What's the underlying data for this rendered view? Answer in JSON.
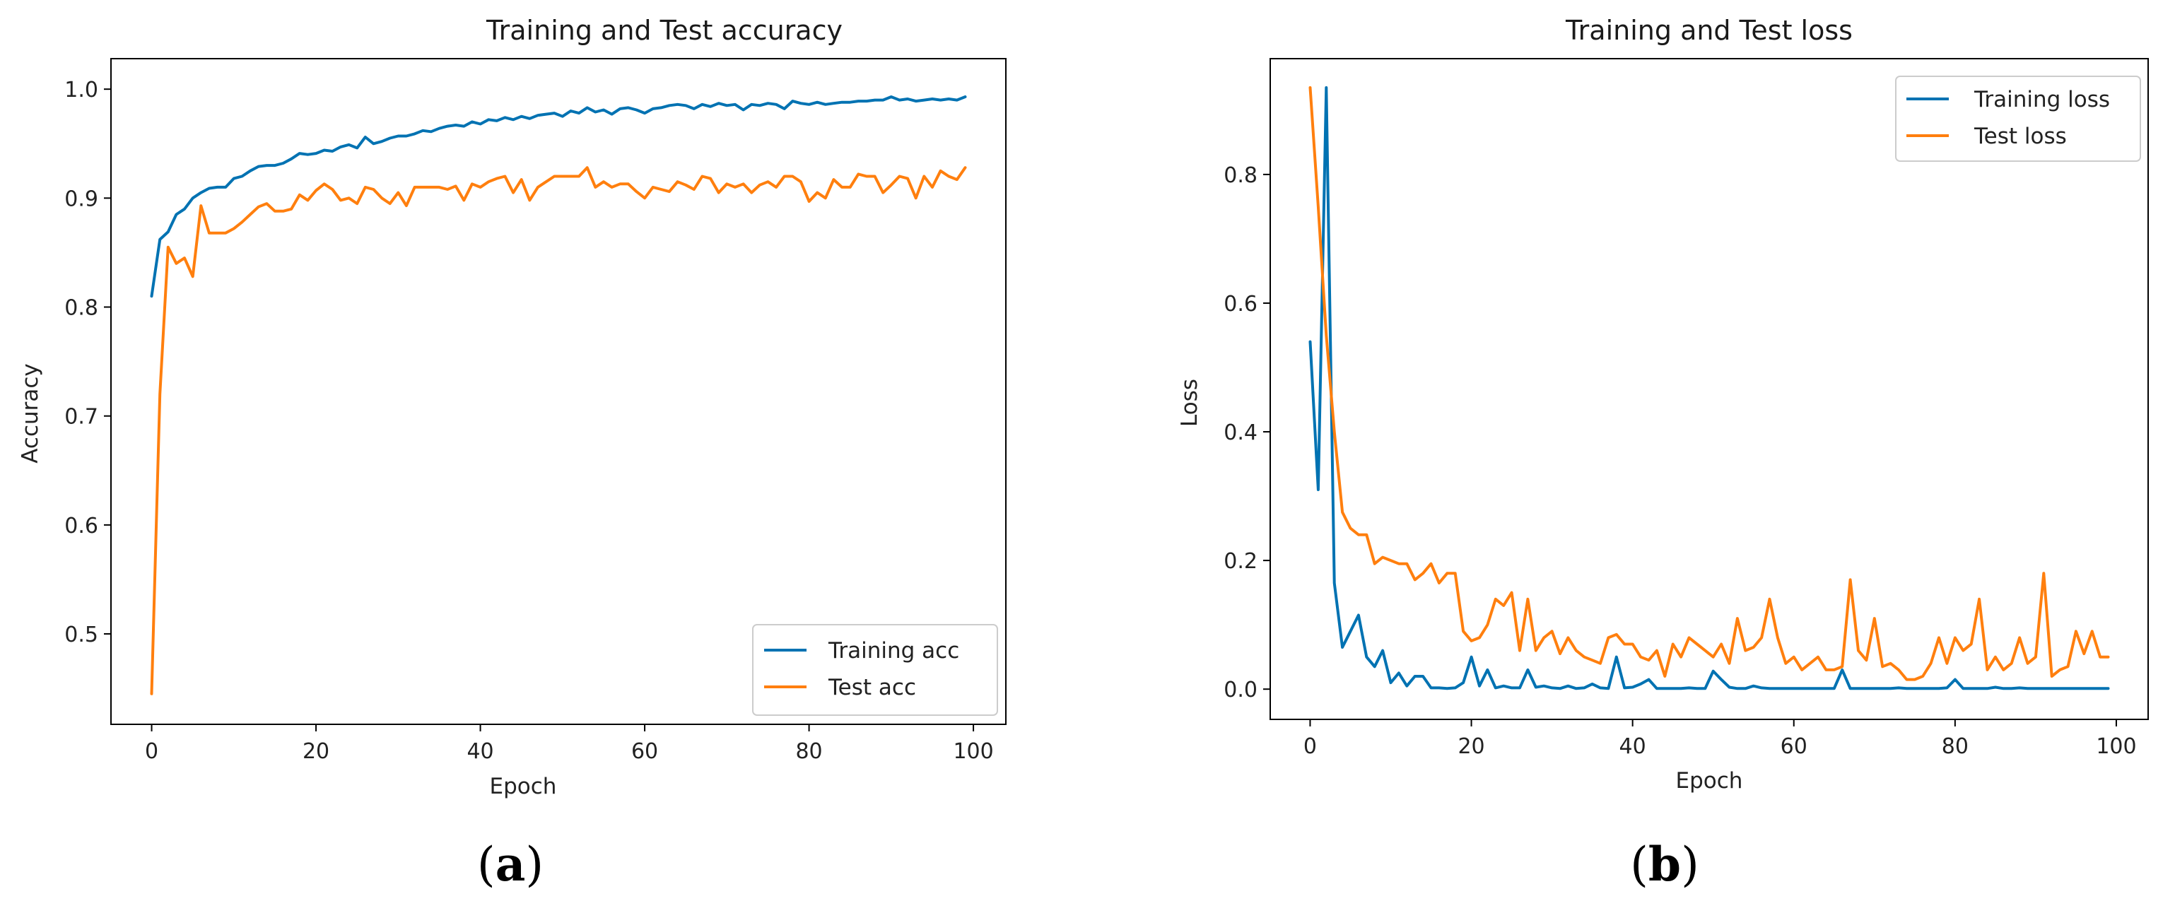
{
  "chart_data": [
    {
      "type": "line",
      "title": "Training and Test accuracy",
      "xlabel": "Epoch",
      "ylabel": "Accuracy",
      "xlim": [
        -4.95,
        103.95
      ],
      "ylim": [
        0.417,
        1.028
      ],
      "xticks": [
        0,
        20,
        40,
        60,
        80,
        100
      ],
      "yticks": [
        0.5,
        0.6,
        0.7,
        0.8,
        0.9,
        1.0
      ],
      "xtick_labels": [
        "0",
        "20",
        "40",
        "60",
        "80",
        "100"
      ],
      "ytick_labels": [
        "0.5",
        "0.6",
        "0.7",
        "0.8",
        "0.9",
        "1.0"
      ],
      "legend_position": "lower-right",
      "caption_letter": "a",
      "series": [
        {
          "name": "Training acc",
          "color": "#0072b2",
          "values": [
            0.81,
            0.862,
            0.869,
            0.885,
            0.89,
            0.9,
            0.905,
            0.909,
            0.91,
            0.91,
            0.918,
            0.92,
            0.925,
            0.929,
            0.93,
            0.93,
            0.932,
            0.936,
            0.941,
            0.94,
            0.941,
            0.944,
            0.943,
            0.947,
            0.949,
            0.946,
            0.956,
            0.95,
            0.952,
            0.955,
            0.957,
            0.957,
            0.959,
            0.962,
            0.961,
            0.964,
            0.966,
            0.967,
            0.966,
            0.97,
            0.968,
            0.972,
            0.971,
            0.974,
            0.972,
            0.975,
            0.973,
            0.976,
            0.977,
            0.978,
            0.975,
            0.98,
            0.978,
            0.983,
            0.979,
            0.981,
            0.977,
            0.982,
            0.983,
            0.981,
            0.978,
            0.982,
            0.983,
            0.985,
            0.986,
            0.985,
            0.982,
            0.986,
            0.984,
            0.987,
            0.985,
            0.986,
            0.981,
            0.986,
            0.985,
            0.987,
            0.986,
            0.982,
            0.989,
            0.987,
            0.986,
            0.988,
            0.986,
            0.987,
            0.988,
            0.988,
            0.989,
            0.989,
            0.99,
            0.99,
            0.993,
            0.99,
            0.991,
            0.989,
            0.99,
            0.991,
            0.99,
            0.991,
            0.99,
            0.993
          ]
        },
        {
          "name": "Test acc",
          "color": "#ff7f0e",
          "values": [
            0.445,
            0.72,
            0.855,
            0.84,
            0.845,
            0.828,
            0.893,
            0.868,
            0.868,
            0.868,
            0.872,
            0.878,
            0.885,
            0.892,
            0.895,
            0.888,
            0.888,
            0.89,
            0.903,
            0.898,
            0.907,
            0.913,
            0.908,
            0.898,
            0.9,
            0.895,
            0.91,
            0.908,
            0.9,
            0.895,
            0.905,
            0.893,
            0.91,
            0.91,
            0.91,
            0.91,
            0.908,
            0.911,
            0.898,
            0.913,
            0.91,
            0.915,
            0.918,
            0.92,
            0.905,
            0.917,
            0.898,
            0.91,
            0.915,
            0.92,
            0.92,
            0.92,
            0.92,
            0.928,
            0.91,
            0.915,
            0.91,
            0.913,
            0.913,
            0.906,
            0.9,
            0.91,
            0.908,
            0.906,
            0.915,
            0.912,
            0.908,
            0.92,
            0.918,
            0.905,
            0.913,
            0.91,
            0.913,
            0.905,
            0.912,
            0.915,
            0.91,
            0.92,
            0.92,
            0.915,
            0.897,
            0.905,
            0.9,
            0.917,
            0.91,
            0.91,
            0.922,
            0.92,
            0.92,
            0.905,
            0.912,
            0.92,
            0.918,
            0.9,
            0.92,
            0.91,
            0.925,
            0.92,
            0.917,
            0.928
          ]
        }
      ]
    },
    {
      "type": "line",
      "title": "Training and Test loss",
      "xlabel": "Epoch",
      "ylabel": "Loss",
      "xlim": [
        -4.95,
        103.95
      ],
      "ylim": [
        -0.047,
        0.98
      ],
      "xticks": [
        0,
        20,
        40,
        60,
        80,
        100
      ],
      "yticks": [
        0.0,
        0.2,
        0.4,
        0.6,
        0.8
      ],
      "xtick_labels": [
        "0",
        "20",
        "40",
        "60",
        "80",
        "100"
      ],
      "ytick_labels": [
        "0.0",
        "0.2",
        "0.4",
        "0.6",
        "0.8"
      ],
      "legend_position": "top-right",
      "caption_letter": "b",
      "series": [
        {
          "name": "Training loss",
          "color": "#0072b2",
          "values": [
            0.54,
            0.31,
            0.935,
            0.165,
            0.065,
            0.09,
            0.115,
            0.05,
            0.035,
            0.06,
            0.01,
            0.025,
            0.005,
            0.02,
            0.02,
            0.002,
            0.002,
            0.001,
            0.002,
            0.01,
            0.05,
            0.005,
            0.03,
            0.002,
            0.005,
            0.002,
            0.002,
            0.03,
            0.003,
            0.005,
            0.002,
            0.001,
            0.005,
            0.001,
            0.002,
            0.008,
            0.002,
            0.001,
            0.05,
            0.002,
            0.003,
            0.008,
            0.015,
            0.001,
            0.001,
            0.001,
            0.001,
            0.002,
            0.001,
            0.001,
            0.028,
            0.015,
            0.003,
            0.001,
            0.001,
            0.005,
            0.002,
            0.001,
            0.001,
            0.001,
            0.001,
            0.001,
            0.001,
            0.001,
            0.001,
            0.001,
            0.03,
            0.001,
            0.001,
            0.001,
            0.001,
            0.001,
            0.001,
            0.002,
            0.001,
            0.001,
            0.001,
            0.001,
            0.001,
            0.002,
            0.015,
            0.001,
            0.001,
            0.001,
            0.001,
            0.003,
            0.001,
            0.001,
            0.002,
            0.001,
            0.001,
            0.001,
            0.001,
            0.001,
            0.001,
            0.001,
            0.001,
            0.001,
            0.001,
            0.001
          ]
        },
        {
          "name": "Test loss",
          "color": "#ff7f0e",
          "values": [
            0.935,
            0.75,
            0.55,
            0.4,
            0.275,
            0.25,
            0.24,
            0.24,
            0.195,
            0.205,
            0.2,
            0.195,
            0.195,
            0.17,
            0.18,
            0.195,
            0.165,
            0.18,
            0.18,
            0.09,
            0.075,
            0.08,
            0.1,
            0.14,
            0.13,
            0.15,
            0.06,
            0.14,
            0.06,
            0.08,
            0.09,
            0.055,
            0.08,
            0.06,
            0.05,
            0.045,
            0.04,
            0.08,
            0.085,
            0.07,
            0.07,
            0.05,
            0.045,
            0.06,
            0.02,
            0.07,
            0.05,
            0.08,
            0.07,
            0.06,
            0.05,
            0.07,
            0.04,
            0.11,
            0.06,
            0.065,
            0.08,
            0.14,
            0.08,
            0.04,
            0.05,
            0.03,
            0.04,
            0.05,
            0.03,
            0.03,
            0.035,
            0.17,
            0.06,
            0.045,
            0.11,
            0.035,
            0.04,
            0.03,
            0.015,
            0.015,
            0.02,
            0.04,
            0.08,
            0.04,
            0.08,
            0.06,
            0.07,
            0.14,
            0.03,
            0.05,
            0.03,
            0.04,
            0.08,
            0.04,
            0.05,
            0.18,
            0.02,
            0.03,
            0.035,
            0.09,
            0.055,
            0.09,
            0.05,
            0.05
          ]
        }
      ]
    }
  ]
}
